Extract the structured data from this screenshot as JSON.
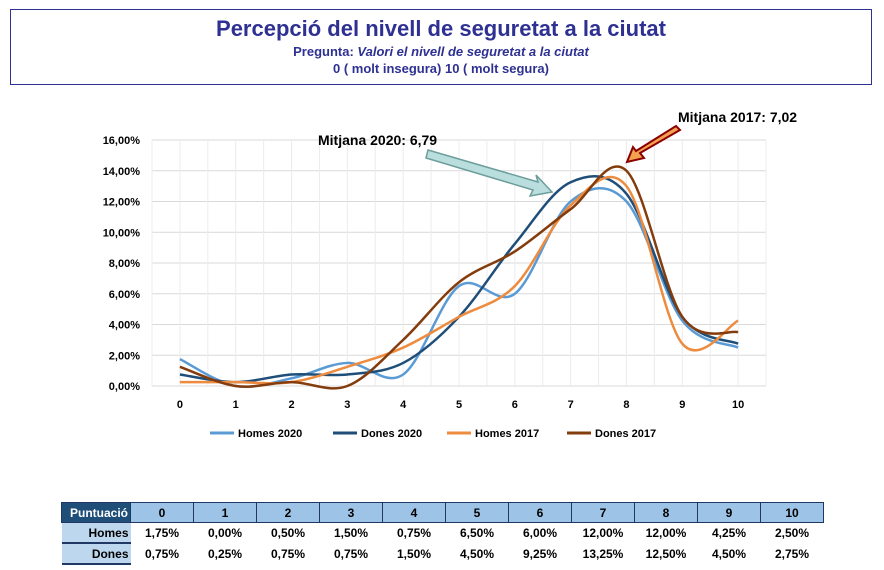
{
  "header": {
    "title": "Percepció del nivell de seguretat a la ciutat",
    "question_label": "Pregunta:",
    "question": "Valori el nivell de seguretat a la ciutat",
    "scale": "0  ( molt insegura)   10 ( molt segura)"
  },
  "chart_data": {
    "type": "line",
    "title": "Percepció del nivell de seguretat a la ciutat",
    "x": [
      "0",
      "1",
      "2",
      "3",
      "4",
      "5",
      "6",
      "7",
      "8",
      "9",
      "10"
    ],
    "ylim": [
      0,
      16
    ],
    "yticks": [
      "0,00%",
      "2,00%",
      "4,00%",
      "6,00%",
      "8,00%",
      "10,00%",
      "12,00%",
      "14,00%",
      "16,00%"
    ],
    "grid": true,
    "legend_position": "bottom",
    "series": [
      {
        "name": "Homes 2020",
        "color": "#5b9bd5",
        "values": [
          1.75,
          0,
          0.5,
          1.5,
          0.75,
          6.5,
          6,
          12,
          12,
          4.25,
          2.5
        ]
      },
      {
        "name": "Dones 2020",
        "color": "#1f4e79",
        "values": [
          0.75,
          0.25,
          0.75,
          0.75,
          1.5,
          4.5,
          9.25,
          13.25,
          12.5,
          4.5,
          2.75
        ]
      },
      {
        "name": "Homes 2017",
        "color": "#ed8b3f",
        "values": [
          0.25,
          0.25,
          0.25,
          1.25,
          2.5,
          4.5,
          6.5,
          11.75,
          13,
          2.75,
          4.25
        ]
      },
      {
        "name": "Dones 2017",
        "color": "#843c0c",
        "values": [
          1.25,
          0,
          0.25,
          0,
          3,
          6.75,
          8.75,
          11.5,
          14,
          4.5,
          3.5
        ]
      }
    ],
    "annotations": [
      "Mitjana 2020: 6,79",
      "Mitjana 2017: 7,02"
    ]
  },
  "table": {
    "header": "Puntuació",
    "cols": [
      "0",
      "1",
      "2",
      "3",
      "4",
      "5",
      "6",
      "7",
      "8",
      "9",
      "10"
    ],
    "rows": [
      {
        "label": "Homes",
        "values": [
          "1,75%",
          "0,00%",
          "0,50%",
          "1,50%",
          "0,75%",
          "6,50%",
          "6,00%",
          "12,00%",
          "12,00%",
          "4,25%",
          "2,50%"
        ]
      },
      {
        "label": "Dones",
        "values": [
          "0,75%",
          "0,25%",
          "0,75%",
          "0,75%",
          "1,50%",
          "4,50%",
          "9,25%",
          "13,25%",
          "12,50%",
          "4,50%",
          "2,75%"
        ]
      }
    ]
  }
}
